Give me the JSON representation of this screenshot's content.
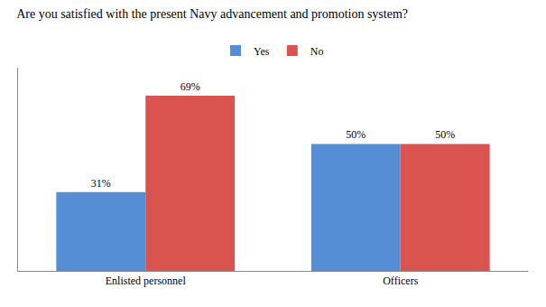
{
  "chart_data": {
    "type": "bar",
    "title": "Are you satisfied with the present Navy advancement and promotion system?",
    "categories": [
      "Enlisted personnel",
      "Officers"
    ],
    "series": [
      {
        "name": "Yes",
        "color": "#558ed5",
        "values": [
          31,
          50
        ],
        "value_labels": [
          "31%",
          "50%"
        ]
      },
      {
        "name": "No",
        "color": "#d9534f",
        "values": [
          69,
          50
        ],
        "value_labels": [
          "69%",
          "50%"
        ]
      }
    ],
    "ylim": [
      0,
      80
    ],
    "grid": false,
    "legend": "top",
    "data_labels": true,
    "tick_labels": "x"
  }
}
